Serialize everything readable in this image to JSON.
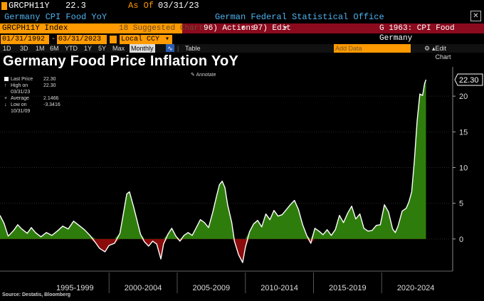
{
  "header": {
    "ticker": "GRCPH11Y",
    "last_value": "22.3",
    "as_of_label": "As Of",
    "as_of_date": "03/31/23",
    "security_name": "Germany CPI Food YoY",
    "source_name": "German Federal Statistical Office",
    "close_label": "✕"
  },
  "toolbar": {
    "index_field": "GRCPH11Y Index",
    "suggested_charts": "18 Suggested Charts",
    "actions": "96) Actions",
    "edit": "97) Edit",
    "chart_id": "G 1963: CPI Food Germany"
  },
  "range": {
    "start_date": "01/31/1992",
    "end_date": "03/31/2023",
    "currency": "Local CCY",
    "frequency": "Monthly",
    "periods": [
      "1D",
      "3D",
      "1M",
      "6M",
      "YTD",
      "1Y",
      "5Y",
      "Max"
    ],
    "table_tab": "Table",
    "add_data_placeholder": "Add Data",
    "edit_chart": "Edit Chart"
  },
  "colors": {
    "accent": "#ff9a00",
    "brand_red": "#8b0a1e",
    "positive_fill": "#2e7d0c",
    "negative_fill": "#8b0a0a",
    "line": "#ffffff"
  },
  "chart_data": {
    "type": "area",
    "title": "Germany Food Price Inflation YoY",
    "legend": [
      {
        "label": "Last Price",
        "value": "22.30"
      },
      {
        "label": "High on 03/31/23",
        "value": "22.30"
      },
      {
        "label": "Average",
        "value": "2.1466"
      },
      {
        "label": "Low on 10/31/09",
        "value": "-3.3416"
      }
    ],
    "annotate_label": "Annotate",
    "last_price_label": "22.30",
    "y_ticks": [
      "20",
      "15",
      "10",
      "5",
      "0"
    ],
    "y_tick_values": [
      20,
      15,
      10,
      5,
      0
    ],
    "ylim": [
      -4.5,
      23.5
    ],
    "x_labels": [
      "1995-1999",
      "2000-2004",
      "2005-2009",
      "2010-2014",
      "2015-2019",
      "2020-2024"
    ],
    "x_label_centers": [
      1997.5,
      2002.5,
      2007.5,
      2012.5,
      2017.5,
      2022.5
    ],
    "x_separators": [
      2000,
      2005,
      2010,
      2015,
      2020
    ],
    "xlim": [
      1992.0,
      2025.0
    ],
    "series": [
      {
        "points": [
          [
            1992.0,
            3.3
          ],
          [
            1992.3,
            2.2
          ],
          [
            1992.6,
            0.4
          ],
          [
            1993.0,
            1.2
          ],
          [
            1993.3,
            2.0
          ],
          [
            1993.6,
            1.4
          ],
          [
            1994.0,
            0.8
          ],
          [
            1994.3,
            1.6
          ],
          [
            1994.6,
            0.9
          ],
          [
            1995.0,
            0.3
          ],
          [
            1995.4,
            0.9
          ],
          [
            1995.8,
            0.5
          ],
          [
            1996.2,
            1.1
          ],
          [
            1996.6,
            1.8
          ],
          [
            1997.0,
            1.4
          ],
          [
            1997.4,
            2.5
          ],
          [
            1997.8,
            1.9
          ],
          [
            1998.2,
            1.3
          ],
          [
            1998.6,
            0.5
          ],
          [
            1999.0,
            -0.5
          ],
          [
            1999.3,
            -1.3
          ],
          [
            1999.7,
            -1.8
          ],
          [
            2000.0,
            -0.9
          ],
          [
            2000.4,
            -0.6
          ],
          [
            2000.8,
            0.8
          ],
          [
            2001.0,
            3.0
          ],
          [
            2001.3,
            6.3
          ],
          [
            2001.5,
            6.6
          ],
          [
            2001.8,
            4.5
          ],
          [
            2002.0,
            3.0
          ],
          [
            2002.3,
            0.7
          ],
          [
            2002.6,
            -0.4
          ],
          [
            2002.9,
            -1.0
          ],
          [
            2003.2,
            -0.3
          ],
          [
            2003.5,
            -0.7
          ],
          [
            2003.8,
            -2.8
          ],
          [
            2004.0,
            -0.7
          ],
          [
            2004.3,
            0.6
          ],
          [
            2004.6,
            1.5
          ],
          [
            2004.9,
            0.4
          ],
          [
            2005.2,
            -0.3
          ],
          [
            2005.5,
            0.5
          ],
          [
            2005.8,
            0.9
          ],
          [
            2006.1,
            0.5
          ],
          [
            2006.4,
            1.6
          ],
          [
            2006.7,
            2.7
          ],
          [
            2007.0,
            2.3
          ],
          [
            2007.3,
            1.6
          ],
          [
            2007.6,
            3.7
          ],
          [
            2007.9,
            6.1
          ],
          [
            2008.1,
            7.6
          ],
          [
            2008.3,
            8.1
          ],
          [
            2008.5,
            7.2
          ],
          [
            2008.7,
            4.8
          ],
          [
            2009.0,
            2.3
          ],
          [
            2009.2,
            -0.3
          ],
          [
            2009.5,
            -2.2
          ],
          [
            2009.8,
            -3.3
          ],
          [
            2010.0,
            -1.2
          ],
          [
            2010.3,
            1.0
          ],
          [
            2010.6,
            2.1
          ],
          [
            2010.9,
            2.6
          ],
          [
            2011.2,
            1.7
          ],
          [
            2011.5,
            3.5
          ],
          [
            2011.8,
            2.7
          ],
          [
            2012.1,
            4.0
          ],
          [
            2012.4,
            3.2
          ],
          [
            2012.7,
            3.4
          ],
          [
            2013.0,
            4.1
          ],
          [
            2013.3,
            4.8
          ],
          [
            2013.6,
            5.4
          ],
          [
            2013.9,
            4.1
          ],
          [
            2014.2,
            2.0
          ],
          [
            2014.5,
            0.5
          ],
          [
            2014.8,
            -0.6
          ],
          [
            2015.1,
            1.5
          ],
          [
            2015.4,
            1.1
          ],
          [
            2015.7,
            0.6
          ],
          [
            2016.0,
            1.3
          ],
          [
            2016.3,
            0.5
          ],
          [
            2016.6,
            1.3
          ],
          [
            2016.9,
            3.3
          ],
          [
            2017.2,
            2.3
          ],
          [
            2017.5,
            3.6
          ],
          [
            2017.8,
            4.6
          ],
          [
            2018.1,
            2.8
          ],
          [
            2018.4,
            3.5
          ],
          [
            2018.7,
            1.5
          ],
          [
            2019.0,
            1.1
          ],
          [
            2019.3,
            1.2
          ],
          [
            2019.6,
            1.9
          ],
          [
            2019.9,
            2.0
          ],
          [
            2020.2,
            4.8
          ],
          [
            2020.5,
            3.8
          ],
          [
            2020.8,
            1.4
          ],
          [
            2021.0,
            0.9
          ],
          [
            2021.2,
            1.8
          ],
          [
            2021.5,
            3.9
          ],
          [
            2021.8,
            4.3
          ],
          [
            2022.0,
            5.2
          ],
          [
            2022.2,
            6.6
          ],
          [
            2022.4,
            11.0
          ],
          [
            2022.6,
            16.5
          ],
          [
            2022.8,
            20.3
          ],
          [
            2023.0,
            20.1
          ],
          [
            2023.15,
            21.8
          ],
          [
            2023.25,
            22.3
          ]
        ]
      }
    ]
  },
  "footer": {
    "source": "Source: Destatis, Bloomberg"
  }
}
